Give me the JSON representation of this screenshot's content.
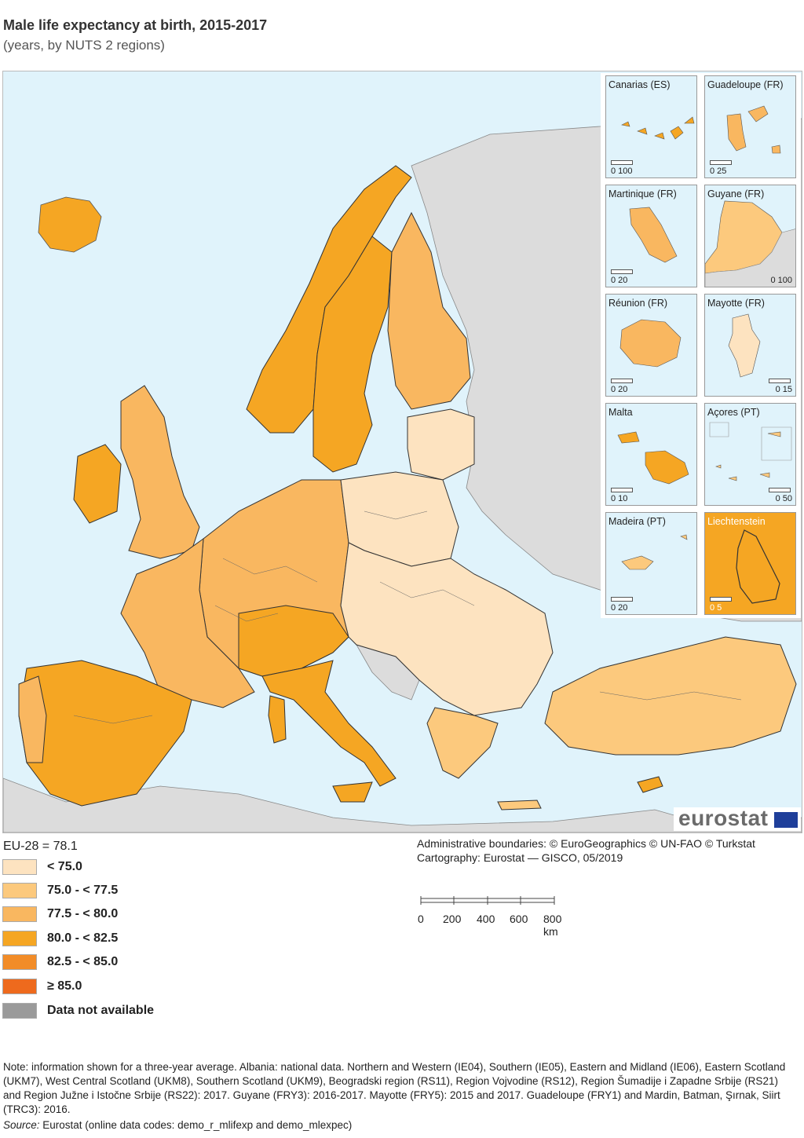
{
  "title": "Male life expectancy at birth, 2015-2017",
  "subtitle": "(years, by NUTS 2 regions)",
  "legend": {
    "total": "EU-28 = 78.1",
    "classes": [
      {
        "label": "< 75.0",
        "color": "#fde3c0"
      },
      {
        "label": "75.0 - < 77.5",
        "color": "#fcc97d"
      },
      {
        "label": "77.5 - < 80.0",
        "color": "#f9b760"
      },
      {
        "label": "80.0 - < 82.5",
        "color": "#f5a623"
      },
      {
        "label": "82.5 - < 85.0",
        "color": "#f28c28"
      },
      {
        "label": "≥ 85.0",
        "color": "#ee6a1d"
      },
      {
        "label": "Data not available",
        "color": "#9a9a9a"
      }
    ]
  },
  "insets": [
    {
      "name": "Canarias (ES)",
      "scale": "0  100"
    },
    {
      "name": "Guadeloupe (FR)",
      "scale": "0  25"
    },
    {
      "name": "Martinique (FR)",
      "scale": "0    20"
    },
    {
      "name": "Guyane (FR)",
      "scale": "0  100"
    },
    {
      "name": "Réunion (FR)",
      "scale": "0    20"
    },
    {
      "name": "Mayotte (FR)",
      "scale": "0    15"
    },
    {
      "name": "Malta",
      "scale": "0    10"
    },
    {
      "name": "Açores (PT)",
      "scale": "0  50"
    },
    {
      "name": "Madeira (PT)",
      "scale": "0    20"
    },
    {
      "name": "Liechtenstein",
      "scale": "0  5"
    }
  ],
  "logo_text": "eurostat",
  "credits": {
    "line1": "Administrative boundaries: © EuroGeographics © UN-FAO © Turkstat",
    "line2": "Cartography: Eurostat — GISCO, 05/2019"
  },
  "scale_bar": {
    "ticks": [
      "0",
      "200",
      "400",
      "600",
      "800 km"
    ]
  },
  "note": "Note: information shown for a three-year average. Albania: national data. Northern and Western (IE04), Southern (IE05), Eastern and Midland (IE06), Eastern Scotland (UKM7), West Central Scotland (UKM8), Southern Scotland (UKM9), Beogradski region (RS11), Region Vojvodine (RS12), Region Šumadije i Zapadne Srbije (RS21) and Region Južne i Istočne Srbije (RS22): 2017. Guyane (FRY3): 2016-2017. Mayotte (FRY5): 2015 and 2017. Guadeloupe (FRY1) and Mardin, Batman, Şırnak, Siirt (TRC3): 2016.",
  "source_label": "Source:",
  "source_text": " Eurostat (online data codes: demo_r_mlifexp and demo_mlexpec)",
  "colors": {
    "sea": "#e0f3fb",
    "non_eu": "#dcdcdc"
  }
}
